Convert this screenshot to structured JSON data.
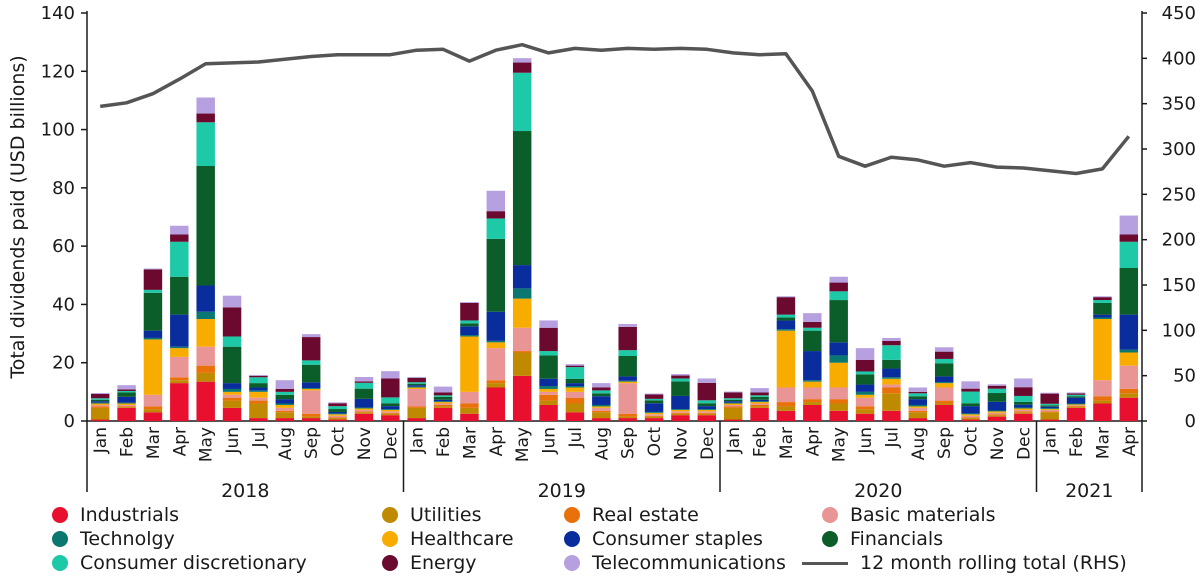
{
  "chart_data": {
    "type": "bar",
    "stacked": true,
    "ylabel": "Total dividends paid (USD billions)",
    "ylim": [
      0,
      140
    ],
    "yticks": [
      0,
      20,
      40,
      60,
      80,
      100,
      120,
      140
    ],
    "y2lim": [
      0,
      450
    ],
    "y2ticks": [
      0,
      50,
      100,
      150,
      200,
      250,
      300,
      350,
      400,
      450
    ],
    "categories": [
      "Jan",
      "Feb",
      "Mar",
      "Apr",
      "May",
      "Jun",
      "Jul",
      "Aug",
      "Sep",
      "Oct",
      "Nov",
      "Dec",
      "Jan",
      "Feb",
      "Mar",
      "Apr",
      "May",
      "Jun",
      "Jul",
      "Aug",
      "Sep",
      "Oct",
      "Nov",
      "Dec",
      "Jan",
      "Feb",
      "Mar",
      "Apr",
      "May",
      "Jun",
      "Jul",
      "Aug",
      "Sep",
      "Oct",
      "Nov",
      "Dec",
      "Jan",
      "Feb",
      "Mar",
      "Apr"
    ],
    "years": [
      {
        "label": "2018",
        "count": 12
      },
      {
        "label": "2019",
        "count": 12
      },
      {
        "label": "2020",
        "count": 12
      },
      {
        "label": "2021",
        "count": 4
      }
    ],
    "series": [
      {
        "name": "Industrials",
        "color": "#e8102e",
        "values": [
          0.5,
          4.5,
          3,
          13,
          13.5,
          4.5,
          1,
          1,
          1,
          0.5,
          2.5,
          2,
          1,
          4.5,
          2.5,
          11.5,
          15.5,
          5.5,
          3,
          1,
          1,
          1,
          2,
          2,
          0.5,
          4.5,
          3.5,
          5.5,
          3.5,
          2.5,
          3.5,
          1,
          5.5,
          0.5,
          1.5,
          2.5,
          0.5,
          4.5,
          6,
          8
        ]
      },
      {
        "name": "Utilities",
        "color": "#c08a00",
        "values": [
          4,
          0.3,
          1,
          1,
          3,
          2.5,
          5,
          2,
          0.5,
          0.5,
          0.5,
          0.5,
          3.5,
          0.5,
          2,
          1.5,
          8,
          1.5,
          3,
          2,
          0.5,
          0.5,
          0.5,
          0.5,
          4,
          0.5,
          1.5,
          1,
          2.5,
          1.5,
          6,
          2,
          0.5,
          0.5,
          0.5,
          0.5,
          2.5,
          0.3,
          1,
          1.5
        ]
      },
      {
        "name": "Real estate",
        "color": "#e8710a",
        "values": [
          0.5,
          0.2,
          1,
          1,
          2.5,
          1,
          1,
          0.5,
          1,
          0.3,
          0.3,
          0.3,
          0.5,
          0.5,
          1.5,
          1,
          0.5,
          2,
          2,
          0.5,
          1,
          0.3,
          0.3,
          0.3,
          0.5,
          0.5,
          1.5,
          1,
          1.5,
          1,
          2,
          0.5,
          1,
          0.3,
          0.3,
          0.3,
          0.3,
          0.3,
          1.5,
          1.5
        ]
      },
      {
        "name": "Basic materials",
        "color": "#ea9595",
        "values": [
          0.5,
          0.5,
          4,
          7,
          6.5,
          1,
          1,
          1,
          8,
          0.5,
          0.5,
          0.5,
          6,
          0.5,
          4,
          11,
          8,
          1,
          2,
          1,
          10.5,
          0.5,
          0.5,
          0.5,
          0.5,
          0.5,
          5,
          4,
          4,
          3,
          1,
          1,
          4.5,
          0.5,
          0.5,
          0.5,
          0.5,
          0.3,
          5.5,
          8
        ]
      },
      {
        "name": "Healthcare",
        "color": "#f8ac00",
        "values": [
          0.5,
          0.5,
          19,
          3,
          9.5,
          1,
          2,
          1,
          0.5,
          0.5,
          0.5,
          0.5,
          0.5,
          0.5,
          19,
          2,
          10,
          1,
          1.5,
          0.5,
          0.5,
          0.5,
          0.5,
          0.5,
          0.5,
          0.5,
          19.5,
          2,
          8.5,
          1,
          2,
          0.5,
          1.5,
          0.5,
          0.5,
          0.5,
          0.3,
          0.3,
          21,
          4.5
        ]
      },
      {
        "name": "Technolgy",
        "color": "#0a7870",
        "values": [
          0.3,
          0.3,
          0.5,
          0.5,
          2.5,
          1,
          0.5,
          0.5,
          0.3,
          0.3,
          0.3,
          0.3,
          0.3,
          0.3,
          0.5,
          0.5,
          3.5,
          1,
          0.5,
          0.5,
          0.3,
          0.3,
          0.3,
          0.3,
          0.3,
          0.3,
          0.5,
          0.5,
          2.5,
          1,
          0.5,
          0.5,
          0.3,
          0.3,
          0.3,
          0.3,
          0.3,
          0.3,
          0.5,
          1
        ]
      },
      {
        "name": "Consumer staples",
        "color": "#0a2d9e",
        "values": [
          0.5,
          2,
          2.5,
          11,
          9,
          2,
          1,
          1.5,
          2,
          0.5,
          3,
          1,
          0.5,
          0.5,
          3,
          10,
          8,
          2.5,
          1,
          3,
          1.5,
          3,
          4.5,
          1,
          0.5,
          0.5,
          3,
          10,
          4.5,
          2.5,
          3,
          2,
          2,
          2.5,
          3,
          1,
          0.5,
          2,
          1,
          12
        ]
      },
      {
        "name": "Financials",
        "color": "#0b5e2a",
        "values": [
          0.5,
          1.5,
          13,
          13,
          41,
          12.5,
          1.5,
          1.5,
          6,
          1,
          3.5,
          1,
          0.5,
          1,
          1,
          25,
          46,
          8,
          1.5,
          1,
          7,
          1,
          5,
          1,
          0.5,
          1,
          1,
          7,
          14.5,
          3.5,
          3,
          1,
          4.5,
          1,
          3,
          1,
          0.5,
          0.5,
          4,
          16
        ]
      },
      {
        "name": "Consumer discretionary",
        "color": "#1ec9a8",
        "values": [
          0.5,
          0.5,
          1,
          12,
          15,
          3.5,
          2,
          1,
          1.5,
          1,
          2,
          2,
          0.5,
          0.5,
          1,
          7,
          20,
          1.5,
          4,
          1,
          2,
          0.5,
          1,
          1,
          0.5,
          0.5,
          1,
          1,
          3,
          1,
          5,
          1,
          1.5,
          4,
          1.5,
          2,
          0.5,
          0.5,
          1,
          9
        ]
      },
      {
        "name": "Energy",
        "color": "#6b0a2e",
        "values": [
          1.5,
          0.5,
          7,
          2.5,
          3,
          10,
          0.5,
          1,
          8,
          1,
          0.5,
          6.5,
          1.5,
          1,
          6,
          2.5,
          3.5,
          8,
          0.5,
          1,
          8,
          1.5,
          1,
          6,
          2,
          1,
          6,
          2,
          3,
          4,
          1.5,
          0.5,
          2.5,
          1,
          1,
          3,
          3.5,
          0.5,
          1,
          2.5
        ]
      },
      {
        "name": "Telecommunications",
        "color": "#b6a0e0",
        "values": [
          0.3,
          1.5,
          0.3,
          3,
          5.5,
          4,
          0.3,
          3,
          1,
          0.3,
          1.5,
          2.5,
          0.3,
          2,
          0.3,
          7,
          1.5,
          2.5,
          0.5,
          1.5,
          1,
          0.3,
          0.5,
          1.5,
          0.3,
          1.5,
          0.3,
          3,
          2,
          4,
          1,
          1.5,
          1.5,
          2.5,
          0.5,
          3,
          0.3,
          0.3,
          0.3,
          6.5
        ]
      }
    ],
    "line": {
      "name": "12 month rolling total (RHS)",
      "color": "#555555",
      "values": [
        347,
        351,
        361,
        377,
        394,
        395,
        396,
        399,
        402,
        404,
        404,
        404,
        409,
        410,
        397,
        409,
        415,
        406,
        411,
        409,
        411,
        410,
        411,
        410,
        406,
        404,
        405,
        364,
        292,
        281,
        291,
        288,
        281,
        285,
        280,
        279,
        276,
        273,
        278,
        314
      ]
    }
  }
}
